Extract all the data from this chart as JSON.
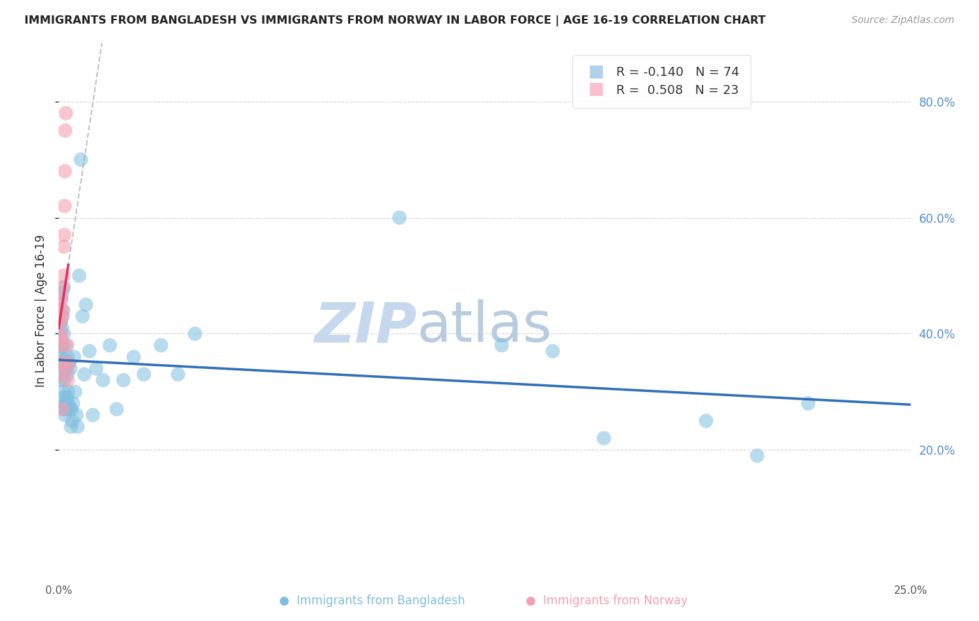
{
  "title": "IMMIGRANTS FROM BANGLADESH VS IMMIGRANTS FROM NORWAY IN LABOR FORCE | AGE 16-19 CORRELATION CHART",
  "source": "Source: ZipAtlas.com",
  "ylabel": "In Labor Force | Age 16-19",
  "xlim": [
    0.0,
    0.25
  ],
  "ylim": [
    -0.02,
    0.9
  ],
  "yticks_right": [
    0.2,
    0.4,
    0.6,
    0.8
  ],
  "bangladesh_color": "#7fbfdf",
  "norway_color": "#f4a0b0",
  "trend_bangladesh_color": "#3070b8",
  "trend_norway_color": "#e03060",
  "background_color": "#ffffff",
  "grid_color": "#cccccc",
  "right_tick_color": "#5090d0",
  "watermark_zip": "ZIP",
  "watermark_atlas": "atlas",
  "watermark_color_zip": "#c5d8ee",
  "watermark_color_atlas": "#b8cce0",
  "R_bangladesh": -0.14,
  "N_bangladesh": 74,
  "R_norway": 0.508,
  "N_norway": 23,
  "bangladesh_x": [
    0.0002,
    0.0003,
    0.0004,
    0.0005,
    0.0005,
    0.0006,
    0.0006,
    0.0007,
    0.0007,
    0.0008,
    0.0008,
    0.0009,
    0.001,
    0.001,
    0.0011,
    0.0011,
    0.0012,
    0.0012,
    0.0013,
    0.0013,
    0.0014,
    0.0014,
    0.0015,
    0.0015,
    0.0016,
    0.0017,
    0.0018,
    0.0018,
    0.0019,
    0.002,
    0.0021,
    0.0022,
    0.0023,
    0.0024,
    0.0025,
    0.0025,
    0.0026,
    0.0027,
    0.0028,
    0.003,
    0.0032,
    0.0034,
    0.0036,
    0.0038,
    0.004,
    0.0042,
    0.0045,
    0.0048,
    0.0052,
    0.0055,
    0.006,
    0.0065,
    0.007,
    0.0075,
    0.008,
    0.009,
    0.01,
    0.011,
    0.013,
    0.015,
    0.017,
    0.019,
    0.022,
    0.025,
    0.03,
    0.035,
    0.04,
    0.1,
    0.13,
    0.145,
    0.16,
    0.19,
    0.205,
    0.22
  ],
  "bangladesh_y": [
    0.38,
    0.42,
    0.4,
    0.44,
    0.38,
    0.42,
    0.36,
    0.46,
    0.35,
    0.38,
    0.32,
    0.41,
    0.47,
    0.36,
    0.43,
    0.33,
    0.38,
    0.44,
    0.3,
    0.35,
    0.29,
    0.27,
    0.48,
    0.4,
    0.32,
    0.28,
    0.34,
    0.26,
    0.27,
    0.34,
    0.38,
    0.28,
    0.35,
    0.29,
    0.33,
    0.27,
    0.36,
    0.3,
    0.28,
    0.35,
    0.27,
    0.34,
    0.24,
    0.27,
    0.25,
    0.28,
    0.36,
    0.3,
    0.26,
    0.24,
    0.5,
    0.7,
    0.43,
    0.33,
    0.45,
    0.37,
    0.26,
    0.34,
    0.32,
    0.38,
    0.27,
    0.32,
    0.36,
    0.33,
    0.38,
    0.33,
    0.4,
    0.6,
    0.38,
    0.37,
    0.22,
    0.25,
    0.19,
    0.28
  ],
  "norway_x": [
    0.0002,
    0.0003,
    0.0004,
    0.0005,
    0.0006,
    0.0007,
    0.0008,
    0.0009,
    0.001,
    0.0011,
    0.0012,
    0.0013,
    0.0014,
    0.0015,
    0.0016,
    0.0017,
    0.0018,
    0.0019,
    0.0021,
    0.0024,
    0.0025,
    0.0026,
    0.0028
  ],
  "norway_y": [
    0.45,
    0.33,
    0.38,
    0.4,
    0.42,
    0.35,
    0.46,
    0.39,
    0.43,
    0.27,
    0.48,
    0.44,
    0.5,
    0.55,
    0.57,
    0.62,
    0.68,
    0.75,
    0.78,
    0.34,
    0.38,
    0.32,
    0.35
  ],
  "trend_b_x0": 0.0,
  "trend_b_x1": 0.25,
  "trend_b_y0": 0.375,
  "trend_b_y1": 0.27,
  "trend_n_x0": 0.0,
  "trend_n_x1": 0.0028,
  "trend_n_y0": 0.33,
  "trend_n_y1": 0.75,
  "trend_n_dash_x0": 0.0,
  "trend_n_dash_x1": 0.038,
  "trend_n_dash_y0": 0.33,
  "trend_n_dash_y1": 0.9
}
